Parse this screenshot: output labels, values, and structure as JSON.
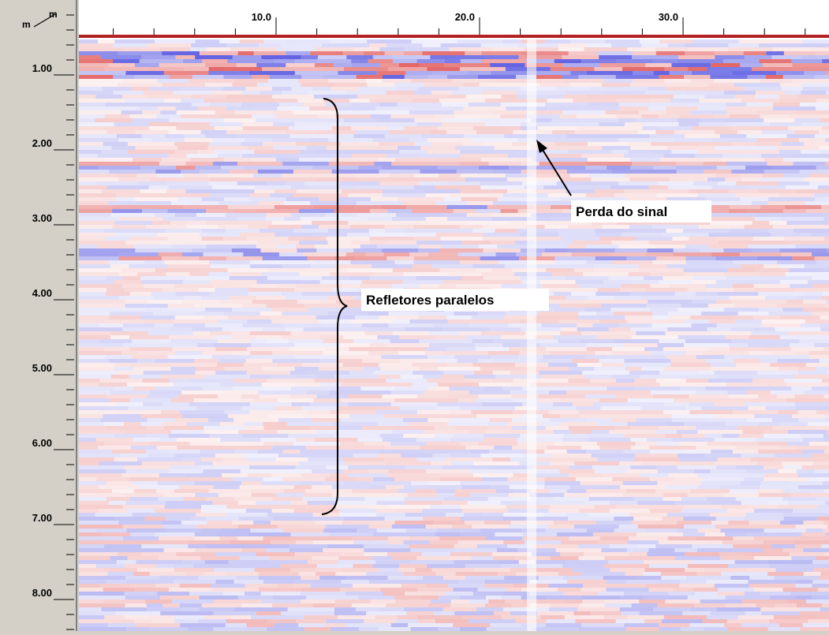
{
  "corner": {
    "left": "m",
    "right": "m"
  },
  "x_axis": {
    "ticks": [
      "10.0",
      "20.0",
      "30.0"
    ]
  },
  "y_axis": {
    "ticks": [
      "1.00",
      "2.00",
      "3.00",
      "4.00",
      "5.00",
      "6.00",
      "7.00",
      "8.00"
    ]
  },
  "annotations": {
    "reflectors": "Refletores paralelos",
    "signal_loss": "Perda do sinal"
  }
}
